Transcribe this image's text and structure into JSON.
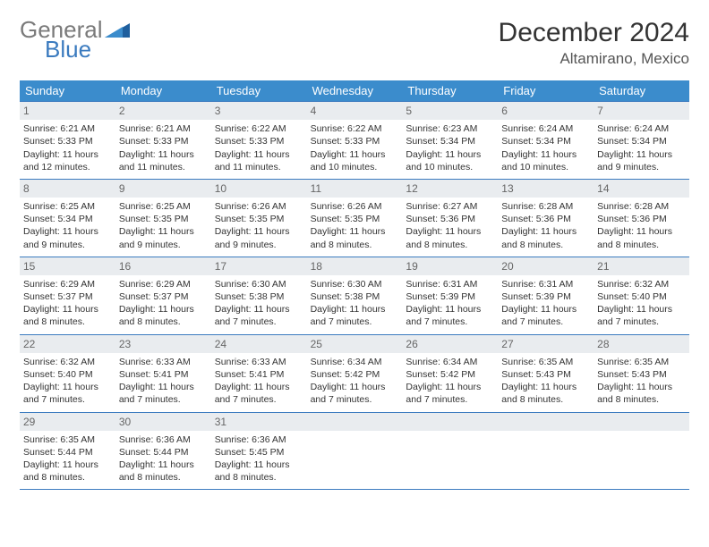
{
  "logo": {
    "word1": "General",
    "word2": "Blue"
  },
  "title": "December 2024",
  "location": "Altamirano, Mexico",
  "colors": {
    "header_bg": "#3b8ccc",
    "rule": "#3b7bbf",
    "daynum_bg": "#e9ecef",
    "logo_gray": "#7a7a7a",
    "logo_blue": "#3b7bbf"
  },
  "day_names": [
    "Sunday",
    "Monday",
    "Tuesday",
    "Wednesday",
    "Thursday",
    "Friday",
    "Saturday"
  ],
  "weeks": [
    [
      {
        "n": "1",
        "sr": "Sunrise: 6:21 AM",
        "ss": "Sunset: 5:33 PM",
        "d1": "Daylight: 11 hours",
        "d2": "and 12 minutes."
      },
      {
        "n": "2",
        "sr": "Sunrise: 6:21 AM",
        "ss": "Sunset: 5:33 PM",
        "d1": "Daylight: 11 hours",
        "d2": "and 11 minutes."
      },
      {
        "n": "3",
        "sr": "Sunrise: 6:22 AM",
        "ss": "Sunset: 5:33 PM",
        "d1": "Daylight: 11 hours",
        "d2": "and 11 minutes."
      },
      {
        "n": "4",
        "sr": "Sunrise: 6:22 AM",
        "ss": "Sunset: 5:33 PM",
        "d1": "Daylight: 11 hours",
        "d2": "and 10 minutes."
      },
      {
        "n": "5",
        "sr": "Sunrise: 6:23 AM",
        "ss": "Sunset: 5:34 PM",
        "d1": "Daylight: 11 hours",
        "d2": "and 10 minutes."
      },
      {
        "n": "6",
        "sr": "Sunrise: 6:24 AM",
        "ss": "Sunset: 5:34 PM",
        "d1": "Daylight: 11 hours",
        "d2": "and 10 minutes."
      },
      {
        "n": "7",
        "sr": "Sunrise: 6:24 AM",
        "ss": "Sunset: 5:34 PM",
        "d1": "Daylight: 11 hours",
        "d2": "and 9 minutes."
      }
    ],
    [
      {
        "n": "8",
        "sr": "Sunrise: 6:25 AM",
        "ss": "Sunset: 5:34 PM",
        "d1": "Daylight: 11 hours",
        "d2": "and 9 minutes."
      },
      {
        "n": "9",
        "sr": "Sunrise: 6:25 AM",
        "ss": "Sunset: 5:35 PM",
        "d1": "Daylight: 11 hours",
        "d2": "and 9 minutes."
      },
      {
        "n": "10",
        "sr": "Sunrise: 6:26 AM",
        "ss": "Sunset: 5:35 PM",
        "d1": "Daylight: 11 hours",
        "d2": "and 9 minutes."
      },
      {
        "n": "11",
        "sr": "Sunrise: 6:26 AM",
        "ss": "Sunset: 5:35 PM",
        "d1": "Daylight: 11 hours",
        "d2": "and 8 minutes."
      },
      {
        "n": "12",
        "sr": "Sunrise: 6:27 AM",
        "ss": "Sunset: 5:36 PM",
        "d1": "Daylight: 11 hours",
        "d2": "and 8 minutes."
      },
      {
        "n": "13",
        "sr": "Sunrise: 6:28 AM",
        "ss": "Sunset: 5:36 PM",
        "d1": "Daylight: 11 hours",
        "d2": "and 8 minutes."
      },
      {
        "n": "14",
        "sr": "Sunrise: 6:28 AM",
        "ss": "Sunset: 5:36 PM",
        "d1": "Daylight: 11 hours",
        "d2": "and 8 minutes."
      }
    ],
    [
      {
        "n": "15",
        "sr": "Sunrise: 6:29 AM",
        "ss": "Sunset: 5:37 PM",
        "d1": "Daylight: 11 hours",
        "d2": "and 8 minutes."
      },
      {
        "n": "16",
        "sr": "Sunrise: 6:29 AM",
        "ss": "Sunset: 5:37 PM",
        "d1": "Daylight: 11 hours",
        "d2": "and 8 minutes."
      },
      {
        "n": "17",
        "sr": "Sunrise: 6:30 AM",
        "ss": "Sunset: 5:38 PM",
        "d1": "Daylight: 11 hours",
        "d2": "and 7 minutes."
      },
      {
        "n": "18",
        "sr": "Sunrise: 6:30 AM",
        "ss": "Sunset: 5:38 PM",
        "d1": "Daylight: 11 hours",
        "d2": "and 7 minutes."
      },
      {
        "n": "19",
        "sr": "Sunrise: 6:31 AM",
        "ss": "Sunset: 5:39 PM",
        "d1": "Daylight: 11 hours",
        "d2": "and 7 minutes."
      },
      {
        "n": "20",
        "sr": "Sunrise: 6:31 AM",
        "ss": "Sunset: 5:39 PM",
        "d1": "Daylight: 11 hours",
        "d2": "and 7 minutes."
      },
      {
        "n": "21",
        "sr": "Sunrise: 6:32 AM",
        "ss": "Sunset: 5:40 PM",
        "d1": "Daylight: 11 hours",
        "d2": "and 7 minutes."
      }
    ],
    [
      {
        "n": "22",
        "sr": "Sunrise: 6:32 AM",
        "ss": "Sunset: 5:40 PM",
        "d1": "Daylight: 11 hours",
        "d2": "and 7 minutes."
      },
      {
        "n": "23",
        "sr": "Sunrise: 6:33 AM",
        "ss": "Sunset: 5:41 PM",
        "d1": "Daylight: 11 hours",
        "d2": "and 7 minutes."
      },
      {
        "n": "24",
        "sr": "Sunrise: 6:33 AM",
        "ss": "Sunset: 5:41 PM",
        "d1": "Daylight: 11 hours",
        "d2": "and 7 minutes."
      },
      {
        "n": "25",
        "sr": "Sunrise: 6:34 AM",
        "ss": "Sunset: 5:42 PM",
        "d1": "Daylight: 11 hours",
        "d2": "and 7 minutes."
      },
      {
        "n": "26",
        "sr": "Sunrise: 6:34 AM",
        "ss": "Sunset: 5:42 PM",
        "d1": "Daylight: 11 hours",
        "d2": "and 7 minutes."
      },
      {
        "n": "27",
        "sr": "Sunrise: 6:35 AM",
        "ss": "Sunset: 5:43 PM",
        "d1": "Daylight: 11 hours",
        "d2": "and 8 minutes."
      },
      {
        "n": "28",
        "sr": "Sunrise: 6:35 AM",
        "ss": "Sunset: 5:43 PM",
        "d1": "Daylight: 11 hours",
        "d2": "and 8 minutes."
      }
    ],
    [
      {
        "n": "29",
        "sr": "Sunrise: 6:35 AM",
        "ss": "Sunset: 5:44 PM",
        "d1": "Daylight: 11 hours",
        "d2": "and 8 minutes."
      },
      {
        "n": "30",
        "sr": "Sunrise: 6:36 AM",
        "ss": "Sunset: 5:44 PM",
        "d1": "Daylight: 11 hours",
        "d2": "and 8 minutes."
      },
      {
        "n": "31",
        "sr": "Sunrise: 6:36 AM",
        "ss": "Sunset: 5:45 PM",
        "d1": "Daylight: 11 hours",
        "d2": "and 8 minutes."
      },
      null,
      null,
      null,
      null
    ]
  ]
}
